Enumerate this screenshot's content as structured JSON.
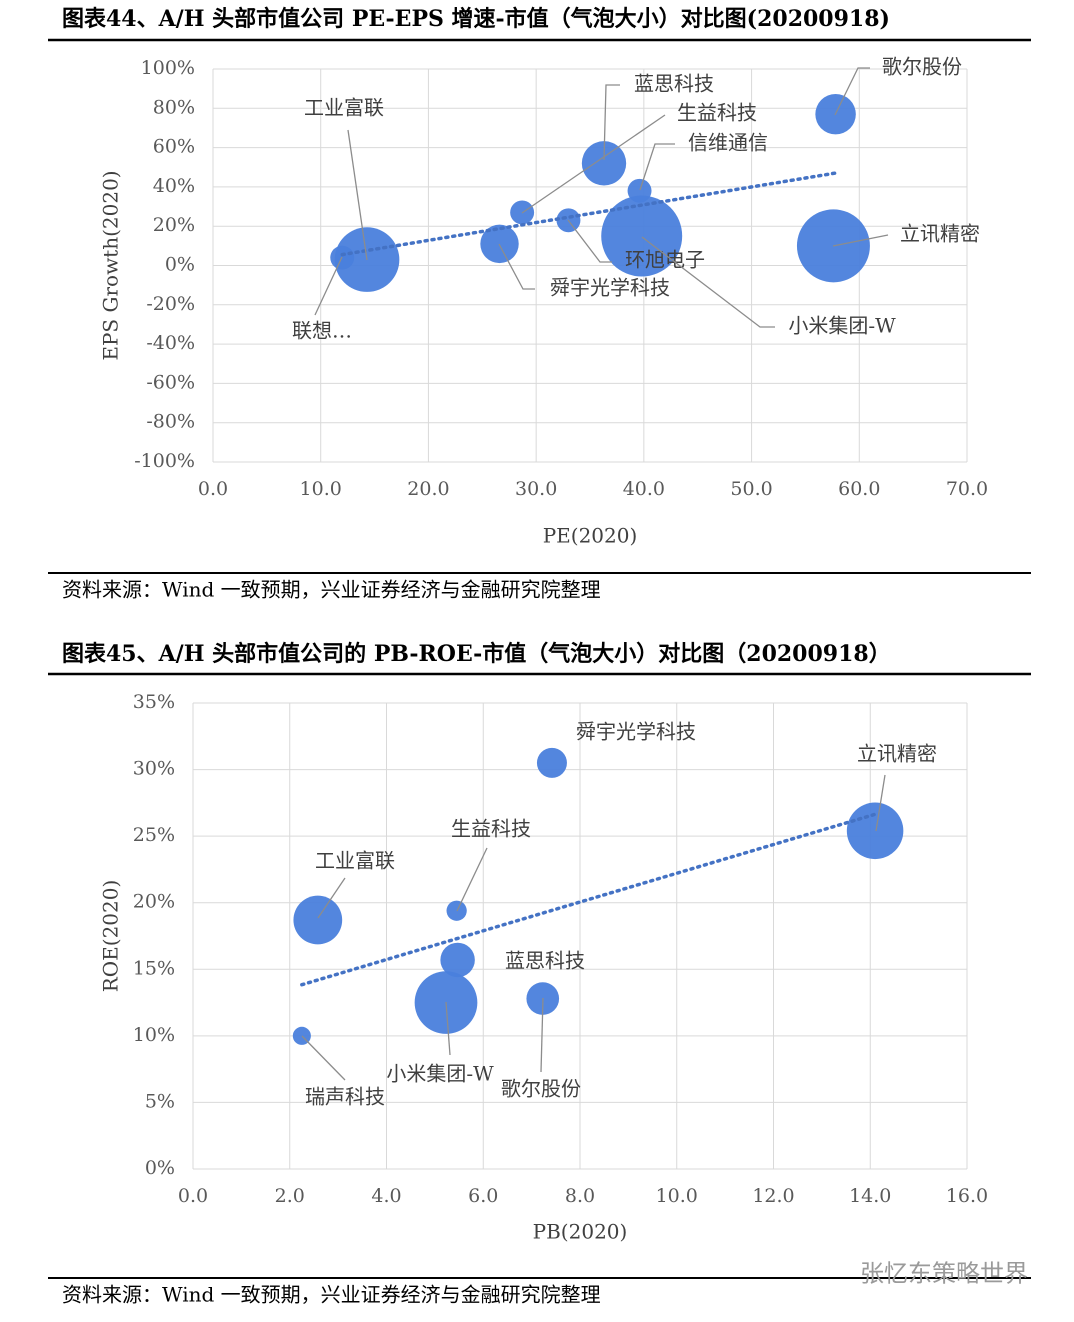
{
  "chart_data": [
    {
      "type": "bubble",
      "title": "图表44、A/H 头部市值公司 PE-EPS 增速-市值（气泡大小）对比图(20200918)",
      "x_label": "PE(2020)",
      "y_label": "EPS Growth(2020)",
      "categories": [
        "联想…",
        "工业富联",
        "舜宇光学科技",
        "生益科技",
        "蓝思科技",
        "信维通信",
        "环旭电子",
        "小米集团-W",
        "立讯精密",
        "歌尔股份"
      ],
      "x": [
        12.0,
        14.3,
        26.6,
        28.7,
        36.3,
        39.6,
        33.0,
        39.8,
        57.6,
        57.8
      ],
      "values": [
        4,
        3,
        11,
        27,
        52,
        38,
        23,
        15,
        10,
        77
      ],
      "sizes": [
        14,
        102,
        36,
        14,
        48,
        14,
        14,
        160,
        130,
        40
      ],
      "color": "#4a7fdc",
      "trendline": true,
      "grid": true,
      "xlim": [
        0,
        70
      ],
      "xticks": [
        {
          "value": 0,
          "label": "0.0"
        },
        {
          "value": 10,
          "label": "10.0"
        },
        {
          "value": 20,
          "label": "20.0"
        },
        {
          "value": 30,
          "label": "30.0"
        },
        {
          "value": 40,
          "label": "40.0"
        },
        {
          "value": 50,
          "label": "50.0"
        },
        {
          "value": 60,
          "label": "60.0"
        },
        {
          "value": 70,
          "label": "70.0"
        }
      ],
      "ylim": [
        -100,
        100
      ],
      "yticks": [
        {
          "value": -100,
          "label": "-100%"
        },
        {
          "value": -80,
          "label": "-80%"
        },
        {
          "value": -60,
          "label": "-60%"
        },
        {
          "value": -40,
          "label": "-40%"
        },
        {
          "value": -20,
          "label": "-20%"
        },
        {
          "value": 0,
          "label": "0%"
        },
        {
          "value": 20,
          "label": "20%"
        },
        {
          "value": 40,
          "label": "40%"
        },
        {
          "value": 60,
          "label": "60%"
        },
        {
          "value": 80,
          "label": "80%"
        },
        {
          "value": 100,
          "label": "100%"
        }
      ],
      "source": "资料来源：Wind 一致预期，兴业证券经济与金融研究院整理"
    },
    {
      "type": "bubble",
      "title": "图表45、A/H 头部市值公司的 PB-ROE-市值（气泡大小）对比图（20200918）",
      "x_label": "PB(2020)",
      "y_label": "ROE(2020)",
      "categories": [
        "瑞声科技",
        "工业富联",
        "生益科技",
        "蓝思科技",
        "小米集团-W",
        "歌尔股份",
        "舜宇光学科技",
        "立讯精密"
      ],
      "x": [
        2.25,
        2.58,
        5.45,
        5.47,
        5.23,
        7.23,
        7.42,
        14.1
      ],
      "values": [
        10.0,
        18.7,
        19.4,
        15.7,
        12.5,
        12.8,
        30.5,
        25.4
      ],
      "sizes": [
        8,
        58,
        10,
        29,
        96,
        26,
        22,
        78
      ],
      "color": "#4a7fdc",
      "trendline": true,
      "grid": true,
      "xlim": [
        0,
        16
      ],
      "xticks": [
        {
          "value": 0,
          "label": "0.0"
        },
        {
          "value": 2,
          "label": "2.0"
        },
        {
          "value": 4,
          "label": "4.0"
        },
        {
          "value": 6,
          "label": "6.0"
        },
        {
          "value": 8,
          "label": "8.0"
        },
        {
          "value": 10,
          "label": "10.0"
        },
        {
          "value": 12,
          "label": "12.0"
        },
        {
          "value": 14,
          "label": "14.0"
        },
        {
          "value": 16,
          "label": "16.0"
        }
      ],
      "ylim": [
        0,
        35
      ],
      "yticks": [
        {
          "value": 0,
          "label": "0%"
        },
        {
          "value": 5,
          "label": "5%"
        },
        {
          "value": 10,
          "label": "10%"
        },
        {
          "value": 15,
          "label": "15%"
        },
        {
          "value": 20,
          "label": "20%"
        },
        {
          "value": 25,
          "label": "25%"
        },
        {
          "value": 30,
          "label": "30%"
        },
        {
          "value": 35,
          "label": "35%"
        }
      ],
      "source": "资料来源：Wind 一致预期，兴业证券经济与金融研究院整理"
    }
  ],
  "watermark": "张忆东策略世界"
}
